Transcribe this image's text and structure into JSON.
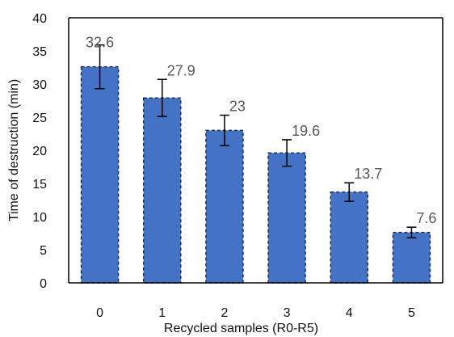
{
  "chart_data": {
    "type": "bar",
    "title": "",
    "xlabel": "Recycled samples (R0-R5)",
    "ylabel": "Time of destruction (min)",
    "categories": [
      "0",
      "1",
      "2",
      "3",
      "4",
      "5"
    ],
    "values": [
      32.6,
      27.9,
      23,
      19.6,
      13.7,
      7.6
    ],
    "data_labels": [
      "32.6",
      "27.9",
      "23",
      "19.6",
      "13.7",
      "7.6"
    ],
    "error": [
      3.3,
      2.8,
      2.3,
      2.0,
      1.4,
      0.8
    ],
    "ylim": [
      0,
      40
    ],
    "yticks": [
      "0",
      "5",
      "10",
      "15",
      "20",
      "25",
      "30",
      "35",
      "40"
    ],
    "grid": false,
    "legend": "none",
    "colors": {
      "bar_fill": "#4472c4",
      "bar_border": "#1f2f4f",
      "axis": "#000000",
      "data_label": "#595959"
    }
  }
}
